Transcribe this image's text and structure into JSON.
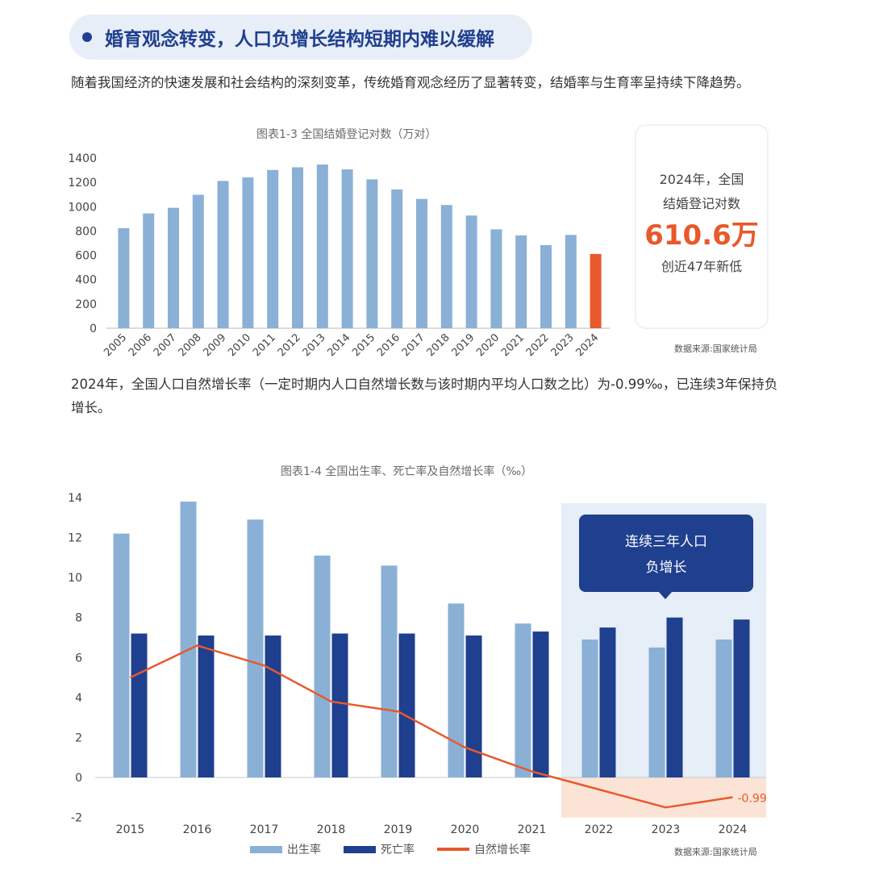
{
  "header": {
    "title": "婚育观念转变，人口负增长结构短期内难以缓解"
  },
  "intro": {
    "text": "随着我国经济的快速发展和社会结构的深刻变革，传统婚育观念经历了显著转变，结婚率与生育率呈持续下降趋势。"
  },
  "middle": {
    "text": "2024年，全国人口自然增长率（一定时期内人口自然增长数与该时期内平均人口数之比）为-0.99‰，已连续3年保持负增长。"
  },
  "callout": {
    "line1": "2024年，全国",
    "line2": "结婚登记对数",
    "value": "610.6万",
    "line3": "创近47年新低"
  },
  "colors": {
    "bar_light": "#8ab0d6",
    "bar_dark": "#1f3f8f",
    "highlight": "#e8592b",
    "panel": "#e6eef8",
    "neg_band": "#fbe3d6"
  },
  "chart_data": [
    {
      "type": "bar",
      "title": "图表1-3 全国结婚登记对数（万对）",
      "source": "数据来源:国家统计局",
      "categories": [
        "2005",
        "2006",
        "2007",
        "2008",
        "2009",
        "2010",
        "2011",
        "2012",
        "2013",
        "2014",
        "2015",
        "2016",
        "2017",
        "2018",
        "2019",
        "2020",
        "2021",
        "2022",
        "2023",
        "2024"
      ],
      "values": [
        823,
        945,
        991,
        1098,
        1212,
        1241,
        1302,
        1324,
        1347,
        1307,
        1225,
        1142,
        1064,
        1014,
        927,
        814,
        764,
        684,
        768,
        611
      ],
      "highlight_index": 19,
      "ylim": [
        0,
        1400
      ],
      "yticks": [
        0,
        200,
        400,
        600,
        800,
        1000,
        1200,
        1400
      ],
      "grid": false
    },
    {
      "type": "bar+line",
      "title": "图表1-4 全国出生率、死亡率及自然增长率（‰）",
      "source": "数据来源:国家统计局",
      "categories": [
        "2015",
        "2016",
        "2017",
        "2018",
        "2019",
        "2020",
        "2021",
        "2022",
        "2023",
        "2024"
      ],
      "series": [
        {
          "name": "出生率",
          "type": "bar",
          "values": [
            12.2,
            13.8,
            12.9,
            11.1,
            10.6,
            8.7,
            7.7,
            6.9,
            6.5,
            6.9
          ]
        },
        {
          "name": "死亡率",
          "type": "bar",
          "values": [
            7.2,
            7.1,
            7.1,
            7.2,
            7.2,
            7.1,
            7.3,
            7.5,
            8.0,
            7.9
          ]
        },
        {
          "name": "自然增长率",
          "type": "line",
          "values": [
            5.0,
            6.6,
            5.6,
            3.8,
            3.3,
            1.5,
            0.3,
            -0.6,
            -1.5,
            -0.99
          ]
        }
      ],
      "end_label": "-0.99",
      "highlight_from_index": 7,
      "annotation": [
        "连续三年人口",
        "负增长"
      ],
      "ylim": [
        -2,
        14
      ],
      "yticks": [
        -2,
        0,
        2,
        4,
        6,
        8,
        10,
        12,
        14
      ],
      "legend_position": "bottom",
      "grid": false
    }
  ]
}
